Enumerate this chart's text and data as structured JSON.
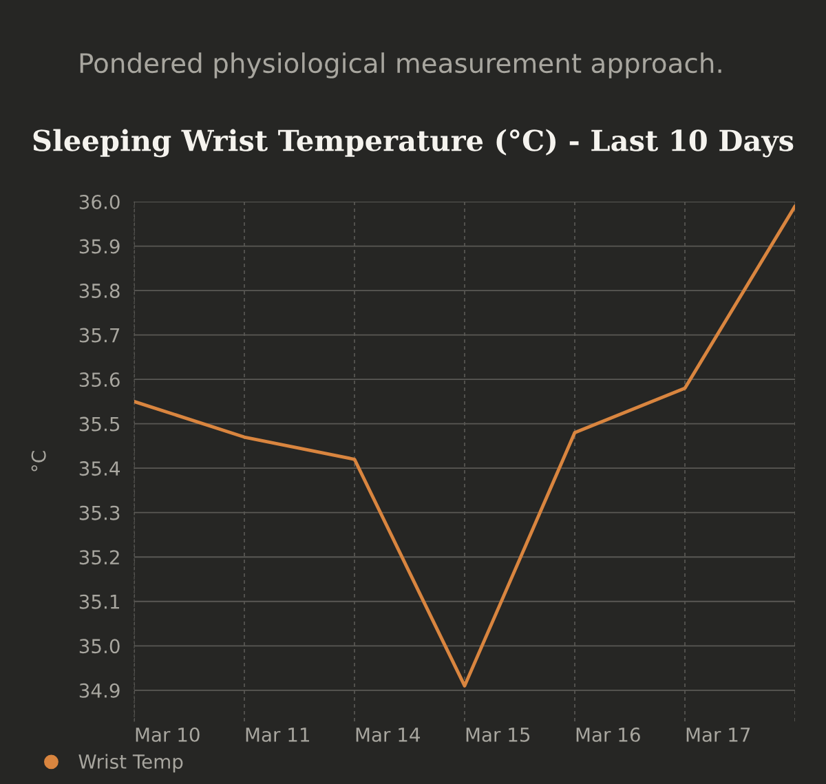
{
  "chart_data": {
    "type": "line",
    "title": "Sleeping Wrist Temperature (°C) - Last 10 Days",
    "annotations": [
      "Pondered physiological measurement approach."
    ],
    "ylabel": "°C",
    "categories": [
      "Mar 10",
      "Mar 11",
      "Mar 14",
      "Mar 15",
      "Mar 16",
      "Mar 17",
      null
    ],
    "series": [
      {
        "name": "Wrist Temp",
        "color": "#d9853f",
        "values": [
          35.55,
          35.47,
          35.42,
          34.91,
          35.48,
          35.58,
          35.99
        ]
      }
    ],
    "ylim": [
      34.83,
      36.0
    ],
    "yticks": [
      34.9,
      {
        "value": 35,
        "label": "35.0"
      },
      35.1,
      35.2,
      35.3,
      35.4,
      35.5,
      35.6,
      35.7,
      35.8,
      35.9,
      {
        "value": 36,
        "label": "36.0"
      }
    ],
    "grid": true,
    "legend": "bottom left",
    "marker": "none",
    "line_style": "solid"
  }
}
